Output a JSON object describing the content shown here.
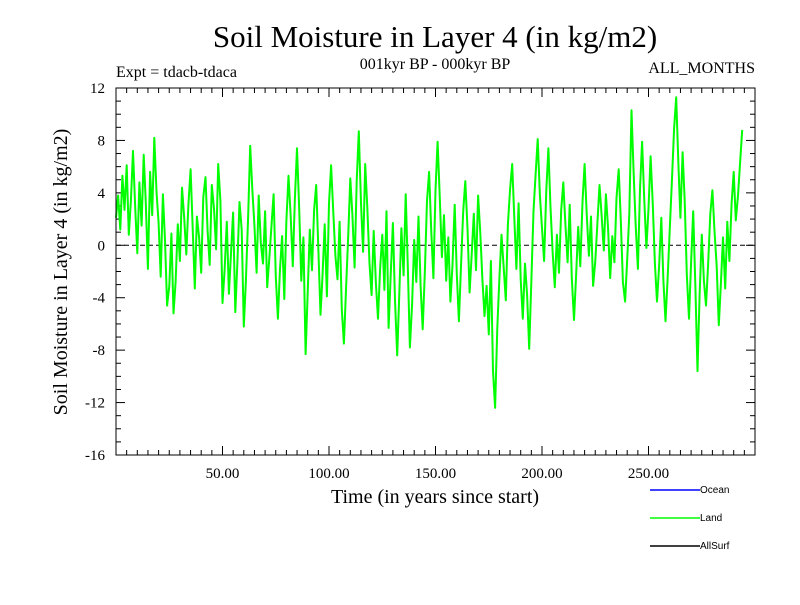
{
  "chart_data": {
    "type": "line",
    "title": "Soil Moisture in Layer 4 (in kg/m2)",
    "subtitle": "001kyr BP - 000kyr BP",
    "left_label": "Expt = tdacb-tdaca",
    "right_label": "ALL_MONTHS",
    "xlabel": "Time (in years since start)",
    "ylabel": "Soil Moisture in Layer 4 (in kg/m2)",
    "xlim": [
      0,
      300
    ],
    "ylim": [
      -16,
      12
    ],
    "x_tick_labels": [
      {
        "value": 50,
        "label": "50.00"
      },
      {
        "value": 100,
        "label": "100.00"
      },
      {
        "value": 150,
        "label": "150.00"
      },
      {
        "value": 200,
        "label": "200.00"
      },
      {
        "value": 250,
        "label": "250.00"
      }
    ],
    "y_tick_labels": [
      {
        "value": 12,
        "label": "12"
      },
      {
        "value": 8,
        "label": "8"
      },
      {
        "value": 4,
        "label": "4"
      },
      {
        "value": 0,
        "label": "0"
      },
      {
        "value": -4,
        "label": "-4"
      },
      {
        "value": -8,
        "label": "-8"
      },
      {
        "value": -12,
        "label": "-12"
      },
      {
        "value": -16,
        "label": "-16"
      }
    ],
    "zero_line": {
      "value": 0,
      "style": "dashed",
      "color": "#000000"
    },
    "legend": [
      {
        "name": "Ocean",
        "color": "#0000ff"
      },
      {
        "name": "Land",
        "color": "#00ff00"
      },
      {
        "name": "AllSurf",
        "color": "#000000"
      }
    ],
    "series": [
      {
        "name": "Land",
        "color": "#00ff00",
        "x_start": 0,
        "x_step": 1,
        "values": [
          2.1,
          3.8,
          1.2,
          5.3,
          2.7,
          6.1,
          0.8,
          3.4,
          7.2,
          2.9,
          -0.6,
          4.8,
          1.5,
          6.9,
          3.2,
          -1.8,
          5.6,
          2.3,
          8.2,
          4.1,
          1.7,
          -2.4,
          3.9,
          0.4,
          -4.6,
          -3.1,
          0.9,
          -5.2,
          -2.8,
          1.6,
          -1.2,
          4.4,
          2.1,
          -0.7,
          3.1,
          5.8,
          1.3,
          -3.3,
          2.2,
          0.6,
          -2.1,
          3.7,
          5.2,
          1.1,
          -1.5,
          4.6,
          2.8,
          -0.3,
          6.2,
          3.4,
          -4.4,
          -1.9,
          1.8,
          -3.7,
          -0.6,
          2.5,
          -5.1,
          -1.3,
          3.3,
          1.2,
          -6.2,
          -2.7,
          2.1,
          7.6,
          4.3,
          1.4,
          -2.1,
          3.8,
          0.2,
          -1.4,
          2.6,
          -3.2,
          -0.9,
          1.5,
          3.9,
          -2.4,
          -5.6,
          -1.8,
          0.7,
          -4.1,
          1.9,
          5.3,
          2.2,
          -1.6,
          3.6,
          7.4,
          2.8,
          -2.7,
          0.6,
          -8.3,
          -3.6,
          1.2,
          -1.9,
          2.7,
          4.6,
          -0.4,
          -5.3,
          -2.2,
          1.6,
          -3.9,
          3.2,
          6.1,
          2.5,
          -0.8,
          -2.6,
          1.8,
          -4.9,
          -7.5,
          -3.4,
          0.7,
          5.1,
          2.3,
          -1.7,
          4.9,
          8.7,
          3.2,
          -0.5,
          6.2,
          2.9,
          -1.4,
          -3.8,
          1.1,
          -2.9,
          -5.6,
          -1.8,
          0.8,
          -3.4,
          2.6,
          -6.3,
          -2.1,
          1.7,
          -4.2,
          -8.4,
          -3.7,
          1.3,
          -2.3,
          3.9,
          -1.6,
          -7.8,
          -4.5,
          0.4,
          -2.8,
          2.2,
          -3.1,
          -6.4,
          -1.9,
          3.4,
          5.6,
          1.2,
          -2.5,
          4.2,
          7.9,
          3.6,
          -0.9,
          2.3,
          -2.7,
          0.6,
          -4.3,
          -1.5,
          3.1,
          -2.2,
          -5.8,
          -1.4,
          2.6,
          4.9,
          1.3,
          -3.6,
          -0.7,
          2.4,
          -1.9,
          3.8,
          1.1,
          -2.6,
          -5.4,
          -3.1,
          -6.8,
          -1.2,
          -9.6,
          -12.4,
          -6.3,
          -2.5,
          0.8,
          -1.7,
          -4.2,
          1.6,
          4.3,
          6.2,
          2.1,
          -1.8,
          3.2,
          -2.6,
          -5.6,
          -1.4,
          -3.8,
          -7.9,
          -2.6,
          2.6,
          5.4,
          8.1,
          3.8,
          1.3,
          -1.2,
          4.2,
          7.4,
          2.9,
          -0.6,
          -3.2,
          0.8,
          -2.1,
          2.7,
          4.8,
          1.6,
          -1.3,
          3.1,
          -2.5,
          -5.7,
          -2.3,
          1.4,
          -1.6,
          3.3,
          6.2,
          2.4,
          -0.8,
          2.2,
          -3.1,
          -1.2,
          1.7,
          4.6,
          2.3,
          -0.4,
          3.9,
          1.4,
          -2.5,
          0.7,
          -1.3,
          3.6,
          5.8,
          1.9,
          -2.8,
          -4.3,
          -1.1,
          2.4,
          10.3,
          5.6,
          1.5,
          -1.8,
          4.3,
          7.9,
          3.6,
          -0.2,
          2.8,
          6.8,
          3.1,
          -1.4,
          -4.3,
          -1.6,
          2.1,
          -2.7,
          -5.8,
          -2.4,
          1.3,
          4.9,
          8.9,
          11.3,
          6.4,
          2.1,
          7.1,
          3.4,
          -2.2,
          -5.6,
          -1.3,
          2.6,
          -3.2,
          -9.6,
          -3.8,
          0.8,
          -2.7,
          -4.6,
          -1.5,
          2.4,
          4.2,
          1.1,
          -1.6,
          -6.1,
          -2.9,
          0.6,
          -3.3,
          1.8,
          -1.2,
          3.2,
          5.6,
          1.9,
          3.8,
          6.3,
          8.8
        ]
      }
    ]
  }
}
